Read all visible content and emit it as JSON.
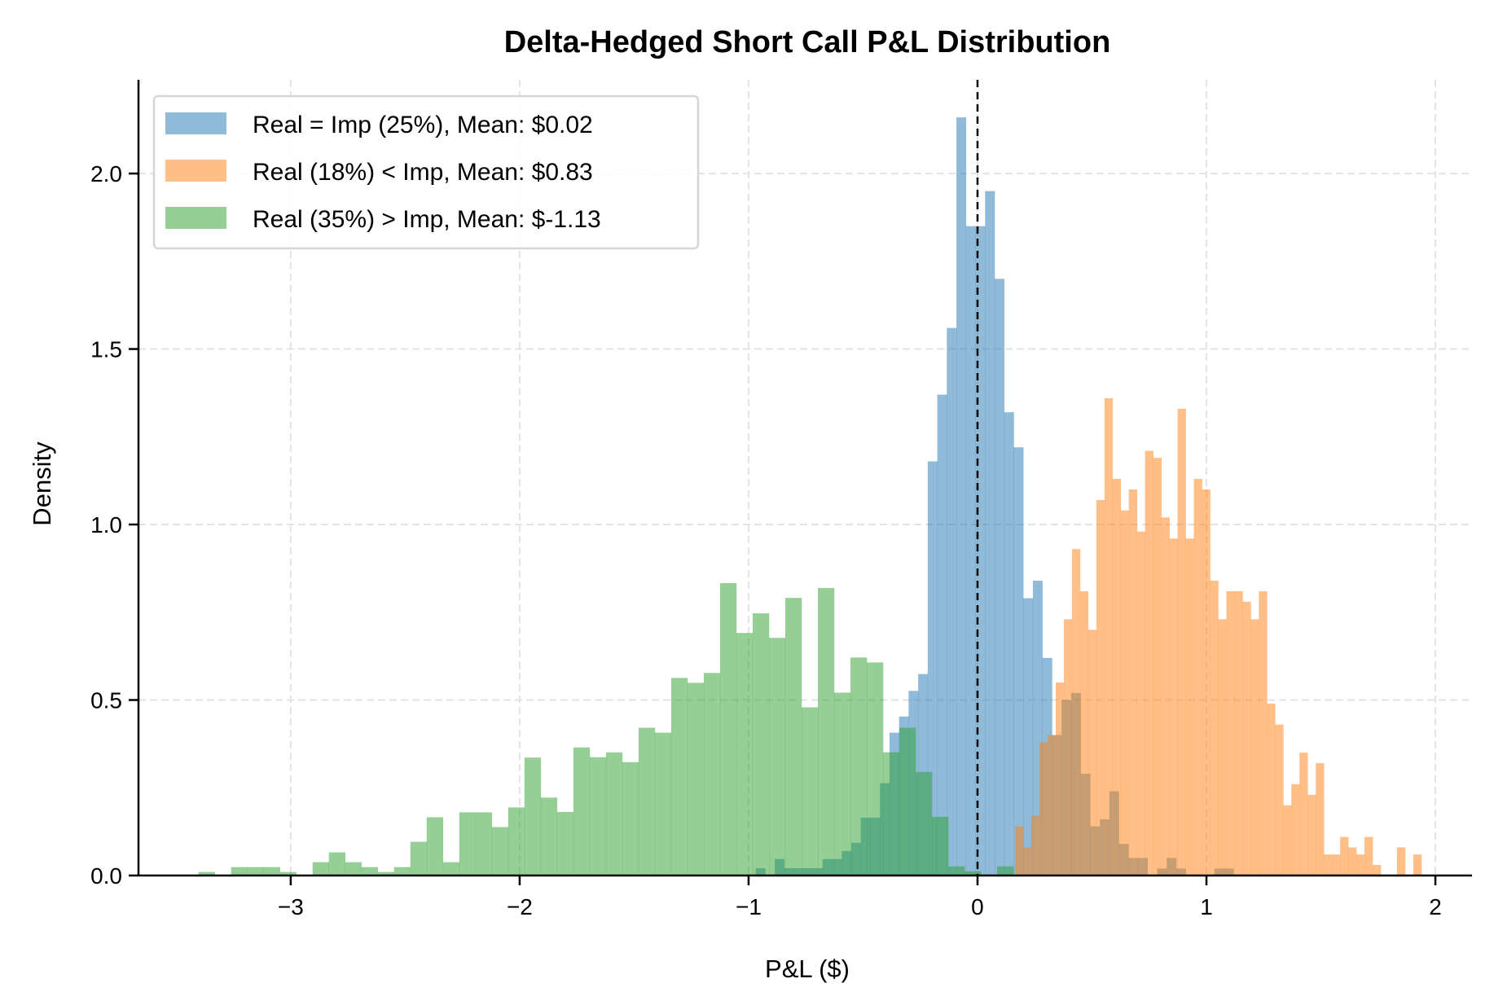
{
  "chart_data": {
    "type": "histogram",
    "title": "Delta-Hedged Short Call P&L Distribution",
    "xlabel": "P&L ($)",
    "ylabel": "Density",
    "xlim": [
      -3.665,
      2.16
    ],
    "ylim": [
      0,
      2.267
    ],
    "xticks": [
      -3,
      -2,
      -1,
      0,
      1,
      2
    ],
    "xtick_labels": [
      "−3",
      "−2",
      "−1",
      "0",
      "1",
      "2"
    ],
    "yticks": [
      0,
      0.5,
      1.0,
      1.5,
      2.0
    ],
    "ytick_labels": [
      "0.0",
      "0.5",
      "1.0",
      "1.5",
      "2.0"
    ],
    "grid": true,
    "vline": {
      "x": 0,
      "style": "dashed",
      "color": "#000000"
    },
    "legend": {
      "placement": "top-left"
    },
    "series": [
      {
        "name": "Real = Imp (25%), Mean: $0.02",
        "color": "#1f77b4",
        "alpha": 0.5,
        "bin_start": -0.969,
        "bin_width": 0.04175,
        "values": [
          0.021,
          0,
          0.047,
          0.021,
          0.021,
          0.021,
          0.021,
          0.047,
          0.047,
          0.07,
          0.093,
          0.165,
          0.165,
          0.263,
          0.407,
          0.453,
          0.526,
          0.574,
          1.18,
          1.37,
          1.56,
          2.16,
          1.85,
          1.85,
          1.95,
          1.7,
          1.32,
          1.22,
          0.79,
          0.84,
          0.62,
          0.4,
          0.5,
          0.52,
          0.29,
          0.14,
          0.16,
          0.24,
          0.09,
          0.05,
          0.05,
          0,
          0.02,
          0.05,
          0.02,
          0,
          0,
          0,
          0.02,
          0.02
        ]
      },
      {
        "name": "Real (18%) < Imp, Mean: $0.83",
        "color": "#ff7f0e",
        "alpha": 0.5,
        "bin_start": 0.164,
        "bin_width": 0.0355,
        "values": [
          0.14,
          0.08,
          0.17,
          0.38,
          0.4,
          0.55,
          0.73,
          0.93,
          0.81,
          0.7,
          1.07,
          1.36,
          1.13,
          1.04,
          1.1,
          0.98,
          1.21,
          1.19,
          1.02,
          0.96,
          1.33,
          0.96,
          1.13,
          1.1,
          0.84,
          0.73,
          0.81,
          0.81,
          0.78,
          0.73,
          0.81,
          0.49,
          0.43,
          0.2,
          0.26,
          0.35,
          0.23,
          0.32,
          0.06,
          0.06,
          0.11,
          0.08,
          0.06,
          0.11,
          0.03,
          0,
          0,
          0.08,
          0,
          0.06
        ]
      },
      {
        "name": "Real (35%) > Imp, Mean: $-1.13",
        "color": "#2ca02c",
        "alpha": 0.5,
        "bin_start": -3.403,
        "bin_width": 0.0712,
        "values": [
          0.01,
          0,
          0.024,
          0.024,
          0.024,
          0.01,
          0,
          0.038,
          0.066,
          0.038,
          0.024,
          0.01,
          0.024,
          0.096,
          0.166,
          0.038,
          0.18,
          0.18,
          0.138,
          0.194,
          0.336,
          0.222,
          0.181,
          0.365,
          0.337,
          0.351,
          0.323,
          0.421,
          0.407,
          0.563,
          0.549,
          0.577,
          0.833,
          0.691,
          0.747,
          0.677,
          0.791,
          0.479,
          0.819,
          0.521,
          0.621,
          0.607,
          0.351,
          0.421,
          0.295,
          0.167,
          0.026,
          0.012,
          0,
          0.026
        ]
      }
    ]
  }
}
